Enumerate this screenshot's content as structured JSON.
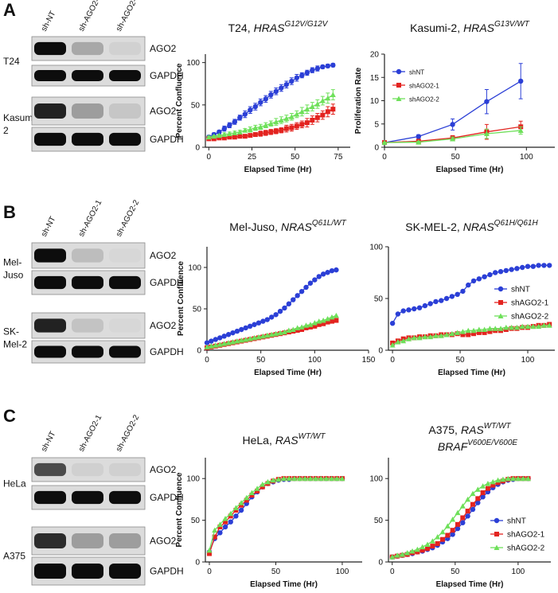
{
  "panel_labels": [
    "A",
    "B",
    "C"
  ],
  "blots": [
    {
      "lanes": [
        "sh-NT",
        "sh-AGO2-1",
        "sh-AGO2-2"
      ],
      "groups": [
        {
          "cell": [
            "T24"
          ],
          "bands": [
            "AGO2",
            "GAPDH"
          ]
        },
        {
          "cell": [
            "Kasumi-",
            "2"
          ],
          "bands": [
            "AGO2",
            "GAPDH"
          ]
        }
      ]
    },
    {
      "lanes": [
        "sh-NT",
        "sh-AGO2-1",
        "sh-AGO2-2"
      ],
      "groups": [
        {
          "cell": [
            "Mel-",
            "Juso"
          ],
          "bands": [
            "AGO2",
            "GAPDH"
          ]
        },
        {
          "cell": [
            "SK-",
            "Mel-2"
          ],
          "bands": [
            "AGO2",
            "GAPDH"
          ]
        }
      ]
    },
    {
      "lanes": [
        "sh-NT",
        "sh-AGO2-1",
        "sh-AGO2-2"
      ],
      "groups": [
        {
          "cell": [
            "HeLa"
          ],
          "bands": [
            "AGO2",
            "GAPDH"
          ]
        },
        {
          "cell": [
            "A375"
          ],
          "bands": [
            "AGO2",
            "GAPDH"
          ]
        }
      ]
    }
  ],
  "chart_data": [
    {
      "type": "line",
      "title": [
        "T24,",
        "HRAS",
        "G12V/G12V"
      ],
      "x_label": "Elapsed Time (Hr)",
      "y_label": "Percent Confluence",
      "x": [
        0,
        3,
        6,
        9,
        12,
        15,
        18,
        21,
        24,
        27,
        30,
        33,
        36,
        39,
        42,
        45,
        48,
        51,
        54,
        57,
        60,
        63,
        66,
        69,
        72
      ],
      "xlim": [
        -2,
        82
      ],
      "xticks": [
        0,
        25,
        50,
        75
      ],
      "ylim": [
        0,
        110
      ],
      "yticks": [
        0,
        50,
        100
      ],
      "series": [
        {
          "color": "#2b3fd6",
          "marker": "circle",
          "values": [
            12,
            15,
            18,
            22,
            26,
            30,
            35,
            39,
            44,
            48,
            53,
            57,
            62,
            66,
            70,
            74,
            78,
            82,
            85,
            88,
            91,
            93,
            95,
            96,
            97
          ],
          "errors": [
            2,
            2,
            2,
            3,
            3,
            3,
            3,
            4,
            4,
            4,
            4,
            4,
            4,
            4,
            4,
            4,
            4,
            4,
            3,
            3,
            3,
            3,
            2,
            2,
            2
          ]
        },
        {
          "color": "#e3231f",
          "marker": "square",
          "values": [
            10,
            10,
            11,
            11,
            12,
            12,
            13,
            13,
            14,
            15,
            16,
            17,
            18,
            19,
            20,
            22,
            23,
            25,
            27,
            29,
            32,
            35,
            38,
            42,
            45
          ],
          "errors": [
            1,
            1,
            1,
            1,
            2,
            2,
            2,
            2,
            2,
            2,
            3,
            3,
            3,
            3,
            3,
            4,
            4,
            4,
            4,
            5,
            5,
            5,
            5,
            6,
            6
          ]
        },
        {
          "color": "#6ee05a",
          "marker": "triangle",
          "values": [
            12,
            13,
            14,
            15,
            16,
            17,
            18,
            20,
            21,
            23,
            24,
            26,
            28,
            30,
            32,
            34,
            36,
            39,
            42,
            45,
            48,
            51,
            55,
            58,
            62
          ],
          "errors": [
            1,
            1,
            1,
            2,
            2,
            2,
            2,
            2,
            3,
            3,
            3,
            3,
            3,
            4,
            4,
            4,
            4,
            4,
            5,
            5,
            5,
            5,
            5,
            6,
            6
          ]
        }
      ]
    },
    {
      "type": "line",
      "title": [
        "Kasumi-2,",
        "HRAS",
        "G13V/WT"
      ],
      "x_label": "Elapsed Time (Hr)",
      "y_label": "Proliferation Rate",
      "x": [
        0,
        24,
        48,
        72,
        96
      ],
      "xlim": [
        0,
        120
      ],
      "xticks": [
        0,
        50,
        100
      ],
      "ylim": [
        0,
        20
      ],
      "yticks": [
        0,
        5,
        10,
        15,
        20
      ],
      "legend": "upper-left",
      "series": [
        {
          "name": "shNT",
          "color": "#2b3fd6",
          "marker": "circle",
          "values": [
            1,
            2.3,
            4.9,
            9.8,
            14.2
          ],
          "errors": [
            0.2,
            0.4,
            1.2,
            2.6,
            3.8
          ]
        },
        {
          "name": "shAGO2-1",
          "color": "#e3231f",
          "marker": "square",
          "values": [
            1,
            1.3,
            2,
            3.3,
            4.4
          ],
          "errors": [
            0.1,
            0.3,
            0.5,
            1.6,
            1.2
          ]
        },
        {
          "name": "shAGO2-2",
          "color": "#6ee05a",
          "marker": "triangle",
          "values": [
            1,
            1.1,
            1.8,
            2.9,
            3.6
          ],
          "errors": [
            0.1,
            0.2,
            0.4,
            1,
            0.8
          ]
        }
      ]
    },
    {
      "type": "line",
      "title": [
        "Mel-Juso,",
        "NRAS",
        "Q61L/WT"
      ],
      "x_label": "Elapsed Time (Hr)",
      "y_label": "Percent Confluence",
      "x": [
        0,
        4,
        8,
        12,
        16,
        20,
        24,
        28,
        32,
        36,
        40,
        44,
        48,
        52,
        56,
        60,
        64,
        68,
        72,
        76,
        80,
        84,
        88,
        92,
        96,
        100,
        104,
        108,
        112,
        116,
        120
      ],
      "xlim": [
        0,
        150
      ],
      "xticks": [
        0,
        50,
        100,
        150
      ],
      "ylim": [
        0,
        125
      ],
      "yticks": [
        0,
        50,
        100
      ],
      "series": [
        {
          "color": "#2b3fd6",
          "marker": "circle",
          "values": [
            9,
            11,
            13,
            15,
            17,
            19,
            21,
            23,
            25,
            27,
            29,
            31,
            33,
            35,
            37,
            40,
            43,
            47,
            51,
            56,
            61,
            66,
            71,
            76,
            81,
            85,
            89,
            92,
            94,
            96,
            97
          ]
        },
        {
          "color": "#e3231f",
          "marker": "square",
          "values": [
            3,
            4,
            5,
            6,
            7,
            8,
            9,
            10,
            11,
            12,
            13,
            14,
            15,
            16,
            17,
            18,
            19,
            20,
            21,
            22,
            23,
            24,
            25,
            27,
            28,
            29,
            31,
            32,
            34,
            35,
            36
          ]
        },
        {
          "color": "#6ee05a",
          "marker": "triangle",
          "values": [
            4,
            5,
            6,
            7,
            8,
            9,
            10,
            11,
            12,
            13,
            14,
            15,
            16,
            17,
            18,
            19,
            20,
            21,
            22,
            24,
            25,
            27,
            28,
            30,
            31,
            33,
            35,
            36,
            38,
            40,
            42
          ]
        }
      ]
    },
    {
      "type": "line",
      "title": [
        "SK-MEL-2,",
        "NRAS",
        "Q61H/Q61H"
      ],
      "x_label": "Elapsed Time (Hr)",
      "x": [
        0,
        4,
        8,
        12,
        16,
        20,
        24,
        28,
        32,
        36,
        40,
        44,
        48,
        52,
        56,
        60,
        64,
        68,
        72,
        76,
        80,
        84,
        88,
        92,
        96,
        100,
        104,
        108,
        112,
        116
      ],
      "xlim": [
        -3,
        120
      ],
      "xticks": [
        0,
        50,
        100
      ],
      "ylim": [
        0,
        100
      ],
      "yticks": [
        0,
        50,
        100
      ],
      "legend": "right",
      "series": [
        {
          "name": "shNT",
          "color": "#2b3fd6",
          "marker": "circle",
          "values": [
            26,
            35,
            38,
            39,
            40,
            41,
            43,
            45,
            47,
            48,
            50,
            52,
            54,
            57,
            63,
            67,
            69,
            71,
            73,
            75,
            76,
            77,
            78,
            79,
            80,
            81,
            81,
            82,
            82,
            82
          ]
        },
        {
          "name": "shAGO2-1",
          "color": "#e3231f",
          "marker": "square",
          "values": [
            7,
            9,
            11,
            12,
            12,
            13,
            13,
            14,
            14,
            15,
            15,
            15,
            16,
            15,
            15,
            16,
            17,
            17,
            18,
            19,
            19,
            20,
            21,
            21,
            22,
            22,
            23,
            24,
            24,
            25
          ]
        },
        {
          "name": "shAGO2-2",
          "color": "#6ee05a",
          "marker": "triangle",
          "values": [
            5,
            8,
            9,
            11,
            12,
            12,
            13,
            13,
            14,
            14,
            15,
            16,
            17,
            18,
            19,
            19,
            20,
            20,
            21,
            21,
            21,
            22,
            22,
            22,
            23,
            23,
            23,
            23,
            24,
            24
          ]
        }
      ]
    },
    {
      "type": "line",
      "title": [
        "HeLa,",
        "RAS",
        "WT/WT"
      ],
      "x_label": "Elapsed Time (Hr)",
      "y_label": "Percent Confluence",
      "x": [
        0,
        4,
        8,
        12,
        16,
        20,
        24,
        28,
        32,
        36,
        40,
        44,
        48,
        52,
        56,
        60,
        64,
        68,
        72,
        76,
        80,
        84,
        88,
        92,
        96,
        100
      ],
      "xlim": [
        -3,
        115
      ],
      "xticks": [
        0,
        50,
        100
      ],
      "ylim": [
        0,
        125
      ],
      "yticks": [
        0,
        50,
        100
      ],
      "series": [
        {
          "color": "#2b3fd6",
          "marker": "circle",
          "values": [
            12,
            28,
            35,
            42,
            48,
            55,
            62,
            70,
            78,
            84,
            90,
            94,
            96,
            98,
            99,
            99,
            100,
            100,
            100,
            100,
            100,
            100,
            100,
            100,
            100,
            100
          ]
        },
        {
          "color": "#e3231f",
          "marker": "square",
          "values": [
            10,
            30,
            42,
            48,
            55,
            62,
            68,
            74,
            80,
            85,
            90,
            94,
            97,
            99,
            100,
            100,
            100,
            100,
            100,
            100,
            100,
            100,
            100,
            100,
            100,
            100
          ]
        },
        {
          "color": "#6ee05a",
          "marker": "triangle",
          "values": [
            14,
            38,
            45,
            52,
            58,
            65,
            71,
            77,
            83,
            88,
            93,
            96,
            98,
            99,
            100,
            100,
            100,
            100,
            100,
            100,
            100,
            100,
            100,
            100,
            100,
            100
          ]
        }
      ]
    },
    {
      "type": "line",
      "title": [
        "A375,",
        "RAS",
        "WT/WT"
      ],
      "subtitle": [
        "BRAF",
        "V600E/V600E"
      ],
      "x_label": "Elapsed Time (Hr)",
      "x": [
        0,
        4,
        8,
        12,
        16,
        20,
        24,
        28,
        32,
        36,
        40,
        44,
        48,
        52,
        56,
        60,
        64,
        68,
        72,
        76,
        80,
        84,
        88,
        92,
        96,
        100,
        104,
        108
      ],
      "xlim": [
        -3,
        126
      ],
      "xticks": [
        0,
        50,
        100
      ],
      "ylim": [
        0,
        125
      ],
      "yticks": [
        0,
        50,
        100
      ],
      "legend": "lower-right",
      "series": [
        {
          "name": "shNT",
          "color": "#2b3fd6",
          "marker": "circle",
          "values": [
            6,
            7,
            8,
            9,
            10,
            12,
            13,
            15,
            17,
            20,
            24,
            28,
            33,
            40,
            47,
            55,
            63,
            71,
            78,
            84,
            89,
            93,
            96,
            98,
            99,
            100,
            100,
            100
          ]
        },
        {
          "name": "shAGO2-1",
          "color": "#e3231f",
          "marker": "square",
          "values": [
            6,
            7,
            8,
            9,
            11,
            12,
            14,
            16,
            19,
            22,
            27,
            32,
            38,
            45,
            53,
            61,
            69,
            76,
            83,
            88,
            92,
            95,
            97,
            99,
            100,
            100,
            100,
            100
          ]
        },
        {
          "name": "shAGO2-2",
          "color": "#6ee05a",
          "marker": "triangle",
          "values": [
            6,
            8,
            9,
            11,
            13,
            15,
            18,
            21,
            25,
            30,
            36,
            43,
            51,
            59,
            67,
            75,
            82,
            87,
            91,
            94,
            96,
            98,
            99,
            100,
            100,
            100,
            100,
            100
          ]
        }
      ]
    }
  ]
}
